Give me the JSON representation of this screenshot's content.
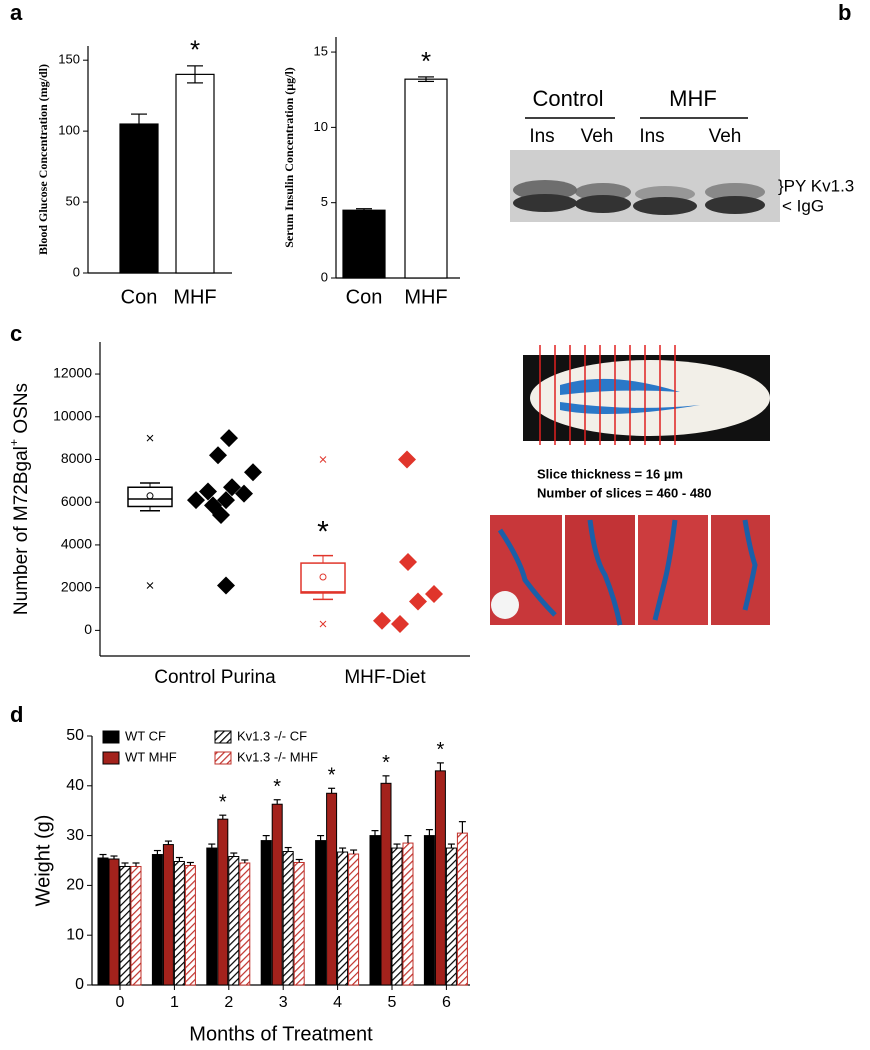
{
  "panel_labels": [
    "a",
    "b",
    "c",
    "d"
  ],
  "chart_data": [
    {
      "type": "bar",
      "ylabel": "Blood Glucose Concentration (mg/dl)",
      "categories": [
        "Con",
        "MHF"
      ],
      "values": [
        105,
        140
      ],
      "errors": [
        7,
        6
      ],
      "colors": [
        "#000000",
        "#ffffff"
      ],
      "markers": [
        null,
        "*"
      ],
      "ylim": [
        0,
        160
      ],
      "yticks": [
        0,
        50,
        100,
        150
      ]
    },
    {
      "type": "bar",
      "ylabel": "Serum Insulin Concentration  (µg/l)",
      "categories": [
        "Con",
        "MHF"
      ],
      "values": [
        4.5,
        13.2
      ],
      "errors": [
        0.1,
        0.15
      ],
      "colors": [
        "#000000",
        "#ffffff"
      ],
      "markers": [
        null,
        "*"
      ],
      "ylim": [
        0,
        16
      ],
      "yticks": [
        0,
        5,
        10,
        15
      ]
    },
    {
      "type": "box",
      "ylabel": [
        "Number of M72Bgal",
        "+",
        " OSNs"
      ],
      "categories": [
        "Control Purina",
        "MHF-Diet"
      ],
      "colors": [
        "#000000",
        "#e0352b"
      ],
      "boxes": [
        {
          "whisker_low": 5600,
          "q1": 5800,
          "median": 6150,
          "q3": 6700,
          "whisker_high": 6900,
          "mean": 6300,
          "min": 2100,
          "max": 9000
        },
        {
          "whisker_low": 1450,
          "q1": 1750,
          "median": 1800,
          "q3": 3150,
          "whisker_high": 3500,
          "mean": 2500,
          "min": 300,
          "max": 8000
        }
      ],
      "points": [
        [
          9000,
          8200,
          7400,
          6700,
          6500,
          6400,
          6100,
          6100,
          5850,
          5400,
          2100
        ],
        [
          8000,
          3200,
          1700,
          1350,
          450,
          300
        ]
      ],
      "markers": [
        null,
        "*"
      ],
      "ylim": [
        -1200,
        13500
      ],
      "yticks": [
        0,
        2000,
        4000,
        6000,
        8000,
        10000,
        12000
      ]
    },
    {
      "type": "bar",
      "xlabel": "Months of Treatment",
      "ylabel": "Weight (g)",
      "categories": [
        0,
        1,
        2,
        3,
        4,
        5,
        6
      ],
      "series": [
        {
          "name": "WT CF",
          "color": "#000000",
          "values": [
            25.5,
            26.2,
            27.5,
            29,
            29,
            30,
            30
          ],
          "errors": [
            0.7,
            0.8,
            0.8,
            1,
            1,
            1,
            1.2
          ]
        },
        {
          "name": "WT MHF",
          "color": "#a3221c",
          "values": [
            25.3,
            28.2,
            33.3,
            36.3,
            38.5,
            40.5,
            43
          ],
          "errors": [
            0.6,
            0.7,
            0.8,
            0.9,
            1,
            1.5,
            1.6
          ],
          "markers": [
            null,
            null,
            "*",
            "*",
            "*",
            "*",
            "*"
          ]
        },
        {
          "name": "Kv1.3 -/- CF",
          "color": "#000000",
          "hatch": true,
          "values": [
            23.8,
            24.8,
            25.8,
            26.8,
            26.7,
            27.5,
            27.5
          ],
          "errors": [
            0.7,
            0.8,
            0.7,
            0.8,
            0.8,
            0.8,
            0.8
          ]
        },
        {
          "name": "Kv1.3 -/- MHF",
          "color": "#c0302a",
          "hatch": true,
          "values": [
            23.8,
            24,
            24.5,
            24.6,
            26.3,
            28.5,
            30.5
          ],
          "errors": [
            0.7,
            0.6,
            0.6,
            0.6,
            0.8,
            1.5,
            2.3
          ]
        }
      ],
      "ylim": [
        0,
        50
      ],
      "yticks": [
        0,
        10,
        20,
        30,
        40,
        50
      ]
    }
  ],
  "blot": {
    "groups": [
      "Control",
      "MHF"
    ],
    "lanes": [
      "Ins",
      "Veh",
      "Ins",
      "Veh"
    ],
    "labels": [
      "}PY Kv1.3",
      "< IgG"
    ]
  },
  "histology": {
    "notes": [
      "Slice thickness  = 16 µm",
      "Number of slices  = 460 - 480"
    ]
  }
}
